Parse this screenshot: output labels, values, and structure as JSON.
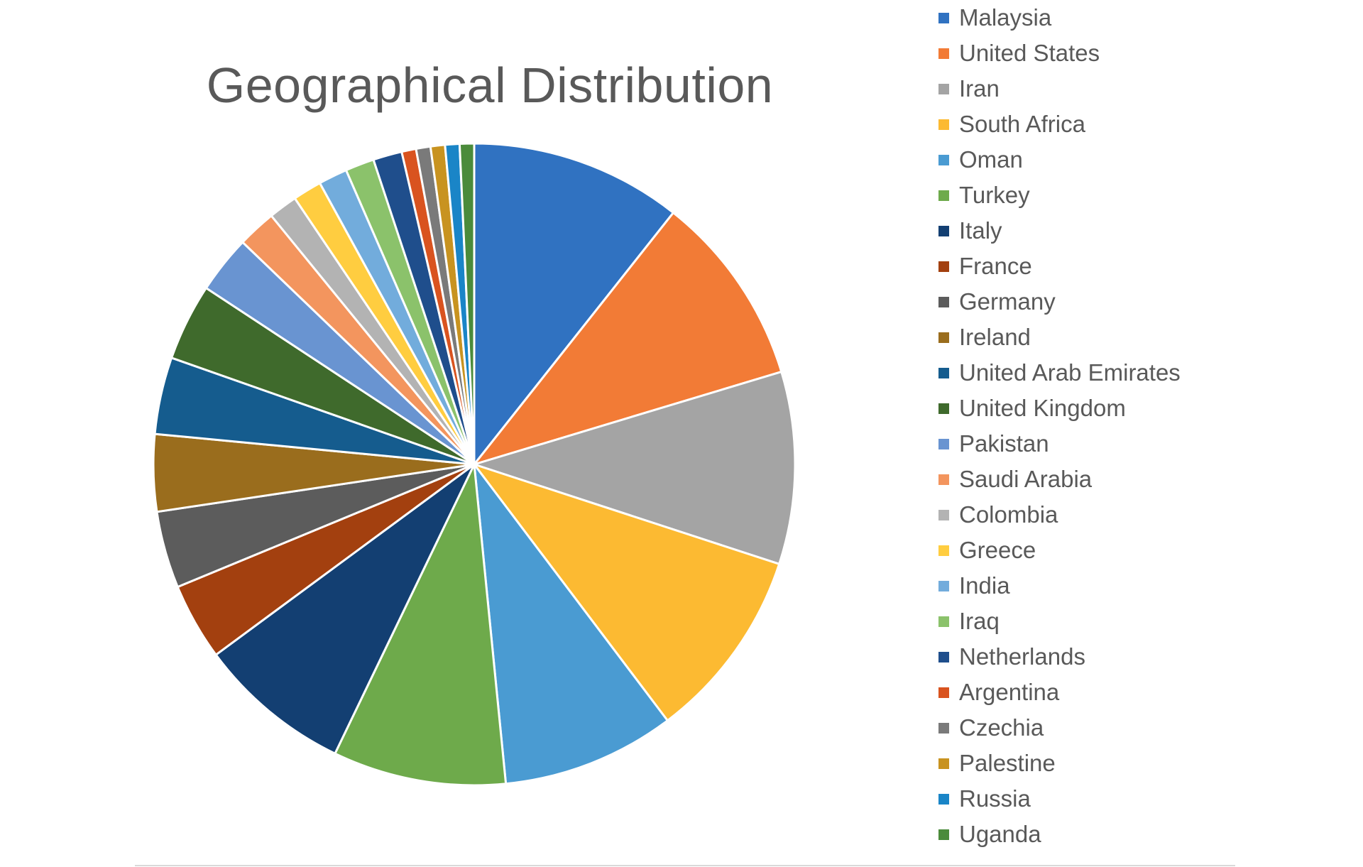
{
  "chart_data": {
    "type": "pie",
    "title": "Geographical Distribution",
    "legend_position": "right",
    "categories": [
      "Malaysia",
      "United States",
      "Iran",
      "South Africa",
      "Oman",
      "Turkey",
      "Italy",
      "France",
      "Germany",
      "Ireland",
      "United Arab Emirates",
      "United Kingdom",
      "Pakistan",
      "Saudi Arabia",
      "Colombia",
      "Greece",
      "India",
      "Iraq",
      "Netherlands",
      "Argentina",
      "Czechia",
      "Palestine",
      "Russia",
      "Uganda"
    ],
    "values": [
      11,
      10,
      10,
      10,
      9,
      9,
      8,
      4,
      4,
      4,
      4,
      4,
      3,
      2,
      1.5,
      1.5,
      1.5,
      1.5,
      1.5,
      0.75,
      0.75,
      0.75,
      0.75,
      0.75
    ],
    "colors": [
      "#3072c1",
      "#f27b36",
      "#a4a4a4",
      "#fcba32",
      "#4a9bd2",
      "#6eaa4b",
      "#133f72",
      "#a3400f",
      "#5c5c5c",
      "#9a6d1d",
      "#155c8e",
      "#3f6a2c",
      "#6994d1",
      "#f3955e",
      "#b3b3b3",
      "#ffcd40",
      "#72acdc",
      "#8bc26b",
      "#1f4e8c",
      "#d9531f",
      "#7a7a7a",
      "#c89320",
      "#1a85c7",
      "#4b8b3b"
    ]
  }
}
